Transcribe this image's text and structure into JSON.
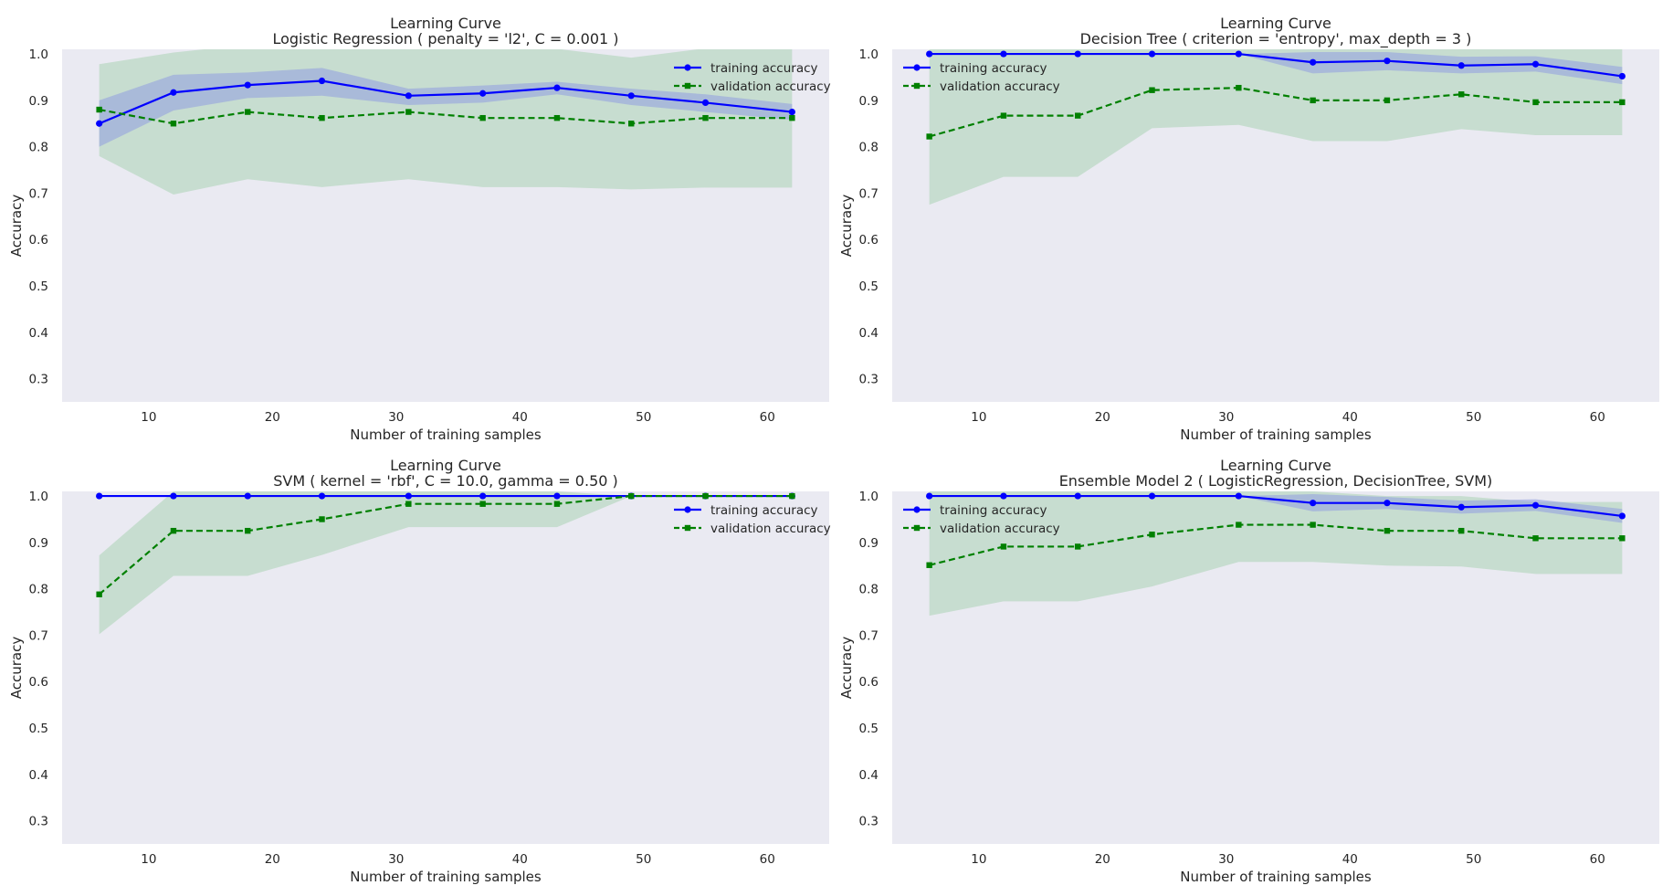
{
  "colors": {
    "train": "#0000ff",
    "train_band": "#8f9ce0",
    "valid": "#008000",
    "valid_band": "#b4d6bd",
    "plot_background": "#eaeaf2"
  },
  "chart_data": [
    {
      "type": "line",
      "title": "Learning Curve",
      "subtitle": "Logistic Regression ( penalty = 'l2', C = 0.001 )",
      "xlabel": "Number of training samples",
      "ylabel": "Accuracy",
      "xlim": [
        3,
        65
      ],
      "ylim": [
        0.25,
        1.01
      ],
      "xticks": [
        10,
        20,
        30,
        40,
        50,
        60
      ],
      "yticks": [
        0.3,
        0.4,
        0.5,
        0.6,
        0.7,
        0.8,
        0.9,
        1.0
      ],
      "ytick_labels": [
        "0.3",
        "0.4",
        "0.5",
        "0.6",
        "0.7",
        "0.8",
        "0.9",
        "1.0"
      ],
      "grid": false,
      "legend_position": "top-right",
      "x": [
        6,
        12,
        18,
        24,
        31,
        37,
        43,
        49,
        55,
        62
      ],
      "series": [
        {
          "name": "training accuracy",
          "style": "solid-circle",
          "values": [
            0.85,
            0.917,
            0.933,
            0.942,
            0.91,
            0.915,
            0.927,
            0.91,
            0.895,
            0.875
          ],
          "band_lower": [
            0.8,
            0.878,
            0.905,
            0.91,
            0.89,
            0.895,
            0.913,
            0.89,
            0.875,
            0.858
          ],
          "band_upper": [
            0.9,
            0.955,
            0.96,
            0.97,
            0.925,
            0.932,
            0.94,
            0.925,
            0.913,
            0.892
          ]
        },
        {
          "name": "validation accuracy",
          "style": "dashed-square",
          "values": [
            0.88,
            0.85,
            0.875,
            0.862,
            0.875,
            0.862,
            0.862,
            0.85,
            0.862,
            0.862
          ],
          "band_lower": [
            0.78,
            0.697,
            0.73,
            0.713,
            0.73,
            0.713,
            0.713,
            0.708,
            0.712,
            0.712
          ],
          "band_upper": [
            0.978,
            1.003,
            1.02,
            1.011,
            1.02,
            1.011,
            1.011,
            0.992,
            1.012,
            1.012
          ]
        }
      ]
    },
    {
      "type": "line",
      "title": "Learning Curve",
      "subtitle": "Decision Tree ( criterion = 'entropy', max_depth = 3 )",
      "xlabel": "Number of training samples",
      "ylabel": "Accuracy",
      "xlim": [
        3,
        65
      ],
      "ylim": [
        0.25,
        1.01
      ],
      "xticks": [
        10,
        20,
        30,
        40,
        50,
        60
      ],
      "yticks": [
        0.3,
        0.4,
        0.5,
        0.6,
        0.7,
        0.8,
        0.9,
        1.0
      ],
      "ytick_labels": [
        "0.3",
        "0.4",
        "0.5",
        "0.6",
        "0.7",
        "0.8",
        "0.9",
        "1.0"
      ],
      "grid": false,
      "legend_position": "top-left",
      "x": [
        6,
        12,
        18,
        24,
        31,
        37,
        43,
        49,
        55,
        62
      ],
      "series": [
        {
          "name": "training accuracy",
          "style": "solid-circle",
          "values": [
            1.0,
            1.0,
            1.0,
            1.0,
            1.0,
            0.982,
            0.985,
            0.975,
            0.978,
            0.952
          ],
          "band_lower": [
            1.0,
            1.0,
            1.0,
            1.0,
            1.0,
            0.958,
            0.965,
            0.958,
            0.962,
            0.935
          ],
          "band_upper": [
            1.0,
            1.0,
            1.0,
            1.0,
            1.0,
            1.004,
            1.004,
            0.994,
            0.995,
            0.972
          ]
        },
        {
          "name": "validation accuracy",
          "style": "dashed-square",
          "values": [
            0.822,
            0.867,
            0.867,
            0.922,
            0.927,
            0.9,
            0.9,
            0.913,
            0.896,
            0.896
          ],
          "band_lower": [
            0.675,
            0.735,
            0.735,
            0.84,
            0.847,
            0.812,
            0.812,
            0.838,
            0.825,
            0.825
          ],
          "band_upper": [
            1.01,
            1.01,
            1.01,
            1.01,
            1.01,
            1.01,
            1.01,
            1.01,
            1.01,
            1.01
          ]
        }
      ]
    },
    {
      "type": "line",
      "title": "Learning Curve",
      "subtitle": "SVM ( kernel = 'rbf', C = 10.0, gamma = 0.50 )",
      "xlabel": "Number of training samples",
      "ylabel": "Accuracy",
      "xlim": [
        3,
        65
      ],
      "ylim": [
        0.25,
        1.01
      ],
      "xticks": [
        10,
        20,
        30,
        40,
        50,
        60
      ],
      "yticks": [
        0.3,
        0.4,
        0.5,
        0.6,
        0.7,
        0.8,
        0.9,
        1.0
      ],
      "ytick_labels": [
        "0.3",
        "0.4",
        "0.5",
        "0.6",
        "0.7",
        "0.8",
        "0.9",
        "1.0"
      ],
      "grid": false,
      "legend_position": "top-right",
      "x": [
        6,
        12,
        18,
        24,
        31,
        37,
        43,
        49,
        55,
        62
      ],
      "series": [
        {
          "name": "training accuracy",
          "style": "solid-circle",
          "values": [
            1.0,
            1.0,
            1.0,
            1.0,
            1.0,
            1.0,
            1.0,
            1.0,
            1.0,
            1.0
          ],
          "band_lower": [
            1.0,
            1.0,
            1.0,
            1.0,
            1.0,
            1.0,
            1.0,
            1.0,
            1.0,
            1.0
          ],
          "band_upper": [
            1.0,
            1.0,
            1.0,
            1.0,
            1.0,
            1.0,
            1.0,
            1.0,
            1.0,
            1.0
          ]
        },
        {
          "name": "validation accuracy",
          "style": "dashed-square",
          "values": [
            0.788,
            0.925,
            0.925,
            0.95,
            0.983,
            0.983,
            0.983,
            1.0,
            1.0,
            1.0
          ],
          "band_lower": [
            0.702,
            0.828,
            0.828,
            0.873,
            0.933,
            0.933,
            0.933,
            1.0,
            1.0,
            1.0
          ],
          "band_upper": [
            0.872,
            1.01,
            1.01,
            1.01,
            1.01,
            1.01,
            1.01,
            1.0,
            1.0,
            1.0
          ]
        }
      ]
    },
    {
      "type": "line",
      "title": "Learning Curve",
      "subtitle": "Ensemble Model 2 ( LogisticRegression, DecisionTree, SVM)",
      "xlabel": "Number of training samples",
      "ylabel": "Accuracy",
      "xlim": [
        3,
        65
      ],
      "ylim": [
        0.25,
        1.01
      ],
      "xticks": [
        10,
        20,
        30,
        40,
        50,
        60
      ],
      "yticks": [
        0.3,
        0.4,
        0.5,
        0.6,
        0.7,
        0.8,
        0.9,
        1.0
      ],
      "ytick_labels": [
        "0.3",
        "0.4",
        "0.5",
        "0.6",
        "0.7",
        "0.8",
        "0.9",
        "1.0"
      ],
      "grid": false,
      "legend_position": "top-left",
      "x": [
        6,
        12,
        18,
        24,
        31,
        37,
        43,
        49,
        55,
        62
      ],
      "series": [
        {
          "name": "training accuracy",
          "style": "solid-circle",
          "values": [
            1.0,
            1.0,
            1.0,
            1.0,
            1.0,
            0.985,
            0.985,
            0.976,
            0.98,
            0.957
          ],
          "band_lower": [
            1.0,
            1.0,
            1.0,
            1.0,
            1.0,
            0.967,
            0.972,
            0.962,
            0.968,
            0.942
          ],
          "band_upper": [
            1.0,
            1.0,
            1.0,
            1.0,
            1.0,
            1.004,
            0.998,
            0.99,
            0.993,
            0.972
          ]
        },
        {
          "name": "validation accuracy",
          "style": "dashed-square",
          "values": [
            0.851,
            0.891,
            0.891,
            0.917,
            0.938,
            0.938,
            0.925,
            0.925,
            0.909,
            0.909
          ],
          "band_lower": [
            0.742,
            0.773,
            0.773,
            0.805,
            0.858,
            0.858,
            0.85,
            0.848,
            0.832,
            0.832
          ],
          "band_upper": [
            1.01,
            1.01,
            1.01,
            1.01,
            1.01,
            1.01,
            1.0,
            1.0,
            0.987,
            0.987
          ]
        }
      ]
    }
  ]
}
